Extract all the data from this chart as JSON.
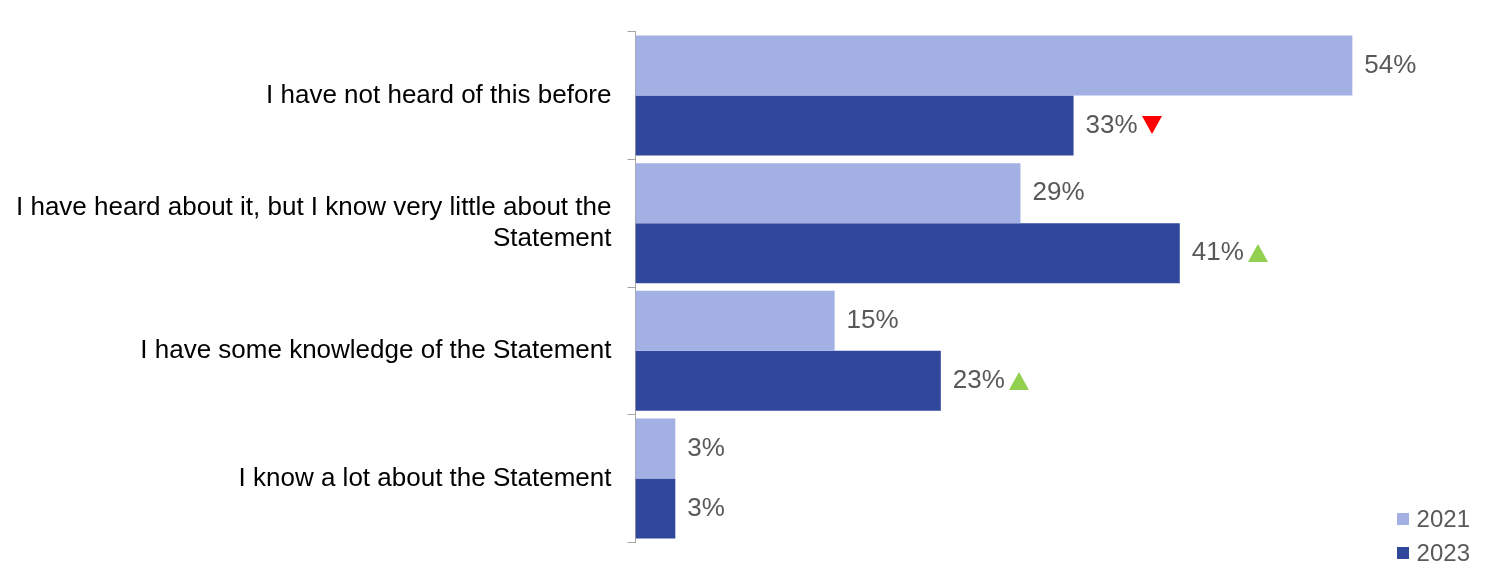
{
  "chart_data": {
    "type": "bar",
    "orientation": "horizontal",
    "categories": [
      "I have not heard of this before",
      "I have heard about it, but I know very little about the Statement",
      "I have some knowledge of the Statement",
      "I know a lot about the Statement"
    ],
    "series": [
      {
        "name": "2021",
        "color": "#a3b0e3",
        "values": [
          54,
          29,
          15,
          3
        ],
        "value_labels": [
          "54%",
          "29%",
          "15%",
          "3%"
        ]
      },
      {
        "name": "2023",
        "color": "#31479c",
        "values": [
          33,
          41,
          23,
          3
        ],
        "value_labels": [
          "33%",
          "41%",
          "23%",
          "3%"
        ]
      }
    ],
    "legend": "bottom right"
  }
}
